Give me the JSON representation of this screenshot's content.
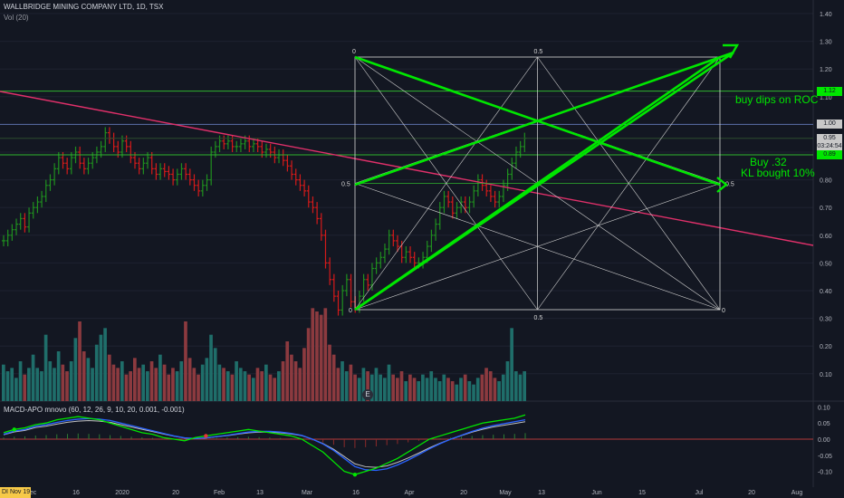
{
  "header": {
    "symbol_line": "WALLBRIDGE MINING COMPANY LTD, 1D, TSX",
    "volume_label": "Vol (20)",
    "macd_label": "MACD-APO mnovo (60, 12, 26, 9, 10, 20, 0.001, -0.001)"
  },
  "price_axis": {
    "ticks": [
      "1.40",
      "1.30",
      "1.20",
      "1.10",
      "1.00",
      "0.95",
      "0.90",
      "0.80",
      "0.70",
      "0.60",
      "0.50",
      "0.40",
      "0.30",
      "0.20",
      "0.10"
    ]
  },
  "macd_axis": {
    "ticks": [
      "0.10",
      "0.05",
      "0.00",
      "-0.05",
      "-0.10"
    ]
  },
  "time_axis": {
    "labels": [
      "Dec",
      "16",
      "2020",
      "20",
      "Feb",
      "13",
      "Mar",
      "16",
      "Apr",
      "20",
      "May",
      "13",
      "Jun",
      "15",
      "Jul",
      "20",
      "Aug"
    ]
  },
  "price_tags": [
    {
      "text": "1.12",
      "color": "#00e600",
      "value": 1.12
    },
    {
      "text": "1.00",
      "color": "#c8c8c8",
      "value": 1.0
    },
    {
      "text": "0.95",
      "color": "#131722",
      "value": 0.95
    },
    {
      "text": "03:24:54",
      "color": "#131722",
      "value": 0.92
    },
    {
      "text": "0.89",
      "color": "#00e600",
      "value": 0.89
    }
  ],
  "fib_labels": {
    "top_left": "0",
    "top_mid": "0.5",
    "mid_left": "0.5",
    "mid_right": "0.5",
    "bottom_left": "0",
    "bottom_mid": "0.5",
    "bottom_right": "0"
  },
  "annotations": {
    "note1": "buy dips on ROC",
    "note2": "Buy .32",
    "note3": "KL bought 10%"
  },
  "badges": {
    "event": "E",
    "flag": "DI Nov 19"
  },
  "colors": {
    "background": "#131722",
    "up": "#26a69a",
    "down": "#ef5350",
    "price_up": "#1f8f1f",
    "price_down": "#d41a1a",
    "accent_green": "#00e600",
    "trendline": "#e0306a",
    "macd_line": "#00e600",
    "signal_line": "#2962ff",
    "apo_line": "#c0c0c0"
  },
  "chart_data": {
    "type": "candlestick",
    "price_ylim": [
      0.25,
      1.45
    ],
    "candles": [
      0.58,
      0.6,
      0.62,
      0.64,
      0.66,
      0.63,
      0.68,
      0.7,
      0.72,
      0.74,
      0.78,
      0.8,
      0.84,
      0.88,
      0.86,
      0.84,
      0.88,
      0.9,
      0.86,
      0.84,
      0.86,
      0.88,
      0.9,
      0.92,
      0.97,
      0.95,
      0.92,
      0.9,
      0.94,
      0.92,
      0.88,
      0.86,
      0.84,
      0.86,
      0.88,
      0.84,
      0.82,
      0.84,
      0.83,
      0.82,
      0.8,
      0.82,
      0.84,
      0.82,
      0.8,
      0.78,
      0.76,
      0.78,
      0.8,
      0.9,
      0.92,
      0.94,
      0.93,
      0.94,
      0.92,
      0.92,
      0.93,
      0.94,
      0.92,
      0.93,
      0.92,
      0.9,
      0.91,
      0.9,
      0.88,
      0.89,
      0.87,
      0.85,
      0.82,
      0.8,
      0.78,
      0.76,
      0.72,
      0.7,
      0.66,
      0.6,
      0.5,
      0.44,
      0.38,
      0.33,
      0.4,
      0.44,
      0.36,
      0.34,
      0.38,
      0.44,
      0.42,
      0.48,
      0.5,
      0.52,
      0.55,
      0.6,
      0.58,
      0.56,
      0.52,
      0.54,
      0.52,
      0.5,
      0.5,
      0.52,
      0.56,
      0.6,
      0.64,
      0.7,
      0.74,
      0.72,
      0.68,
      0.7,
      0.72,
      0.7,
      0.72,
      0.76,
      0.8,
      0.78,
      0.76,
      0.74,
      0.72,
      0.74,
      0.78,
      0.82,
      0.86,
      0.9,
      0.92,
      0.95
    ],
    "volumes": [
      0.11,
      0.09,
      0.1,
      0.07,
      0.12,
      0.08,
      0.1,
      0.14,
      0.1,
      0.09,
      0.2,
      0.12,
      0.1,
      0.15,
      0.11,
      0.09,
      0.12,
      0.19,
      0.24,
      0.15,
      0.13,
      0.1,
      0.17,
      0.2,
      0.22,
      0.14,
      0.11,
      0.1,
      0.12,
      0.08,
      0.09,
      0.13,
      0.1,
      0.11,
      0.09,
      0.12,
      0.1,
      0.14,
      0.11,
      0.08,
      0.1,
      0.09,
      0.12,
      0.24,
      0.13,
      0.1,
      0.08,
      0.11,
      0.13,
      0.2,
      0.16,
      0.11,
      0.1,
      0.09,
      0.08,
      0.12,
      0.1,
      0.09,
      0.08,
      0.07,
      0.1,
      0.09,
      0.11,
      0.08,
      0.07,
      0.09,
      0.12,
      0.18,
      0.14,
      0.12,
      0.1,
      0.16,
      0.22,
      0.28,
      0.27,
      0.26,
      0.28,
      0.17,
      0.14,
      0.1,
      0.12,
      0.09,
      0.11,
      0.08,
      0.07,
      0.1,
      0.09,
      0.08,
      0.1,
      0.08,
      0.07,
      0.11,
      0.08,
      0.07,
      0.09,
      0.06,
      0.08,
      0.07,
      0.06,
      0.08,
      0.07,
      0.09,
      0.07,
      0.06,
      0.08,
      0.07,
      0.06,
      0.05,
      0.07,
      0.08,
      0.06,
      0.05,
      0.07,
      0.08,
      0.1,
      0.09,
      0.07,
      0.06,
      0.08,
      0.12,
      0.22,
      0.09,
      0.08,
      0.09
    ],
    "macd_ylim": [
      -0.14,
      0.12
    ]
  }
}
